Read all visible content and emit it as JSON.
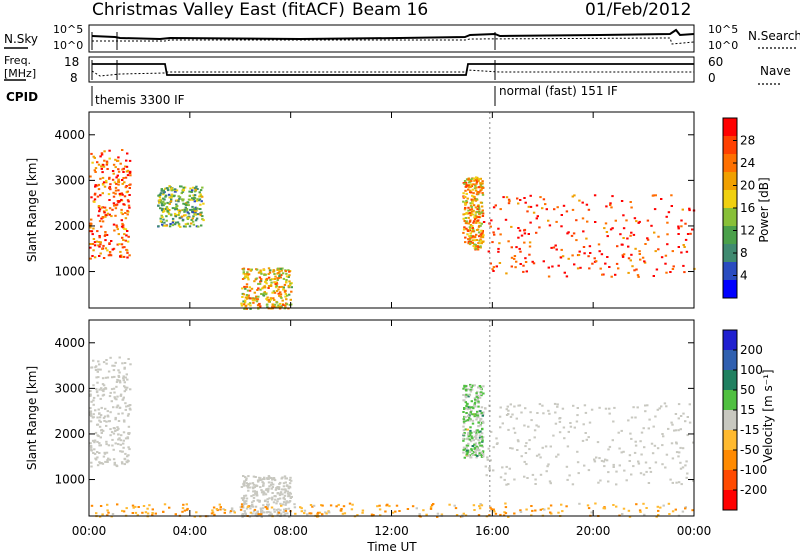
{
  "title": {
    "station": "Christmas Valley East (fitACF)",
    "beam": "Beam 16",
    "date": "01/Feb/2012"
  },
  "header": {
    "nsky_label": "N.Sky",
    "nsky_ticks": [
      "10^5",
      "10^0"
    ],
    "nsearch_label": "N.Search",
    "nsearch_ticks": [
      "10^5",
      "10^0"
    ],
    "freq_label": "Freq.",
    "freq_unit": "[MHz]",
    "freq_ticks": [
      "18",
      "8"
    ],
    "nave_label": "Nave",
    "nave_ticks": [
      "60",
      "0"
    ],
    "cpid_label": "CPID",
    "cpid_mode_1": "themis 3300 IF",
    "cpid_mode_2": "normal (fast) 151 IF"
  },
  "colors": {
    "power_scale": [
      "#0000ff",
      "#2a4cc0",
      "#3f8a70",
      "#4aa04a",
      "#88c038",
      "#f0d010",
      "#f0a000",
      "#ff7000",
      "#ff4000",
      "#ff0000"
    ],
    "velocity_scale": [
      "#ff0000",
      "#ff4a00",
      "#ff8a00",
      "#ffba30",
      "#c8c8c0",
      "#50c040",
      "#208060",
      "#3060b0",
      "#2020d0"
    ],
    "ground_scatter": "#c8c8c0"
  },
  "chart_data": [
    {
      "type": "heatmap",
      "panel": "power",
      "ylabel": "Slant Range [km]",
      "y_ticks": [
        "1000",
        "2000",
        "3000",
        "4000"
      ],
      "ylim": [
        200,
        4500
      ],
      "xlim": [
        0,
        24
      ],
      "colorbar": {
        "label": "Power [dB]",
        "ticks": [
          "4",
          "8",
          "12",
          "16",
          "20",
          "24",
          "28"
        ],
        "range": [
          0,
          30
        ]
      },
      "regions": [
        {
          "t": [
            0.0,
            1.6
          ],
          "r": [
            1300,
            3700
          ],
          "level_db": 24
        },
        {
          "t": [
            2.7,
            4.5
          ],
          "r": [
            2000,
            2900
          ],
          "level_db": 12
        },
        {
          "t": [
            6.0,
            8.0
          ],
          "r": [
            200,
            1100
          ],
          "level_db": 18
        },
        {
          "t": [
            14.8,
            15.6
          ],
          "r": [
            1500,
            3100
          ],
          "level_db": 20
        },
        {
          "t": [
            15.6,
            24.0
          ],
          "r": [
            900,
            2700
          ],
          "level_db": 26
        }
      ]
    },
    {
      "type": "heatmap",
      "panel": "velocity",
      "xlabel": "Time UT",
      "ylabel": "Slant Range [km]",
      "x_ticks": [
        "00:00",
        "04:00",
        "08:00",
        "12:00",
        "16:00",
        "20:00",
        "00:00"
      ],
      "y_ticks": [
        "1000",
        "2000",
        "3000",
        "4000"
      ],
      "ylim": [
        200,
        4500
      ],
      "xlim": [
        0,
        24
      ],
      "colorbar": {
        "label": "Velocity [m s⁻¹]",
        "ticks": [
          "200",
          "100",
          "50",
          "15",
          "-15",
          "-50",
          "-100",
          "-200"
        ],
        "range": [
          -250,
          250
        ]
      },
      "regions": [
        {
          "t": [
            0.0,
            1.6
          ],
          "r": [
            1300,
            3700
          ],
          "state": "ground scatter"
        },
        {
          "t": [
            6.0,
            8.0
          ],
          "r": [
            200,
            1100
          ],
          "state": "ground scatter"
        },
        {
          "t": [
            14.8,
            15.6
          ],
          "r": [
            1500,
            3100
          ],
          "velocity_ms": 30
        },
        {
          "t": [
            15.6,
            24.0
          ],
          "r": [
            900,
            2700
          ],
          "state": "ground scatter"
        },
        {
          "t": [
            0.0,
            24.0
          ],
          "r": [
            200,
            500
          ],
          "velocity_ms": -70
        }
      ]
    }
  ]
}
